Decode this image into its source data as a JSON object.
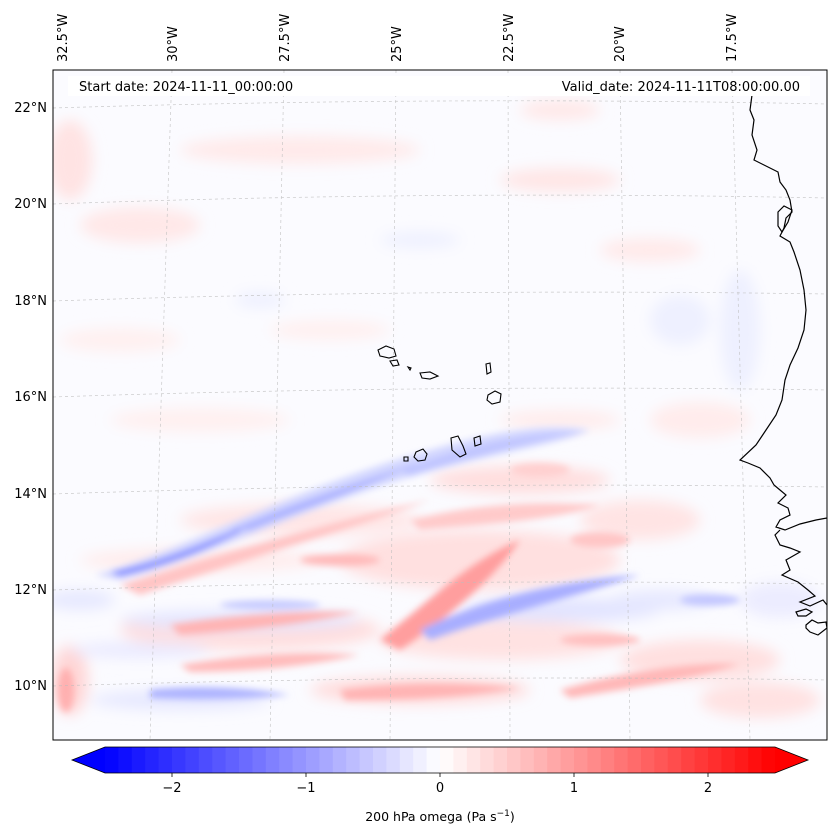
{
  "header": {
    "start_date": "Start date: 2024-11-11_00:00:00",
    "valid_date": "Valid_date: 2024-11-11T08:00:00.00"
  },
  "map": {
    "lon_ticks": [
      "32.5°W",
      "30°W",
      "27.5°W",
      "25°W",
      "22.5°W",
      "20°W",
      "17.5°W"
    ],
    "lat_ticks": [
      "22°N",
      "20°N",
      "18°N",
      "16°N",
      "14°N",
      "12°N",
      "10°N"
    ],
    "colors": {
      "negative": "#0000ff",
      "zero": "#ffffff",
      "positive": "#ff0000",
      "coast": "#000000"
    }
  },
  "colorbar": {
    "ticks": [
      "−2",
      "−1",
      "0",
      "1",
      "2"
    ],
    "tick_values": [
      -2,
      -1,
      0,
      1,
      2
    ],
    "range": [
      -2.5,
      2.5
    ],
    "label_main": "200 hPa omega (Pa s",
    "label_exp": "−1",
    "label_close": ")"
  }
}
